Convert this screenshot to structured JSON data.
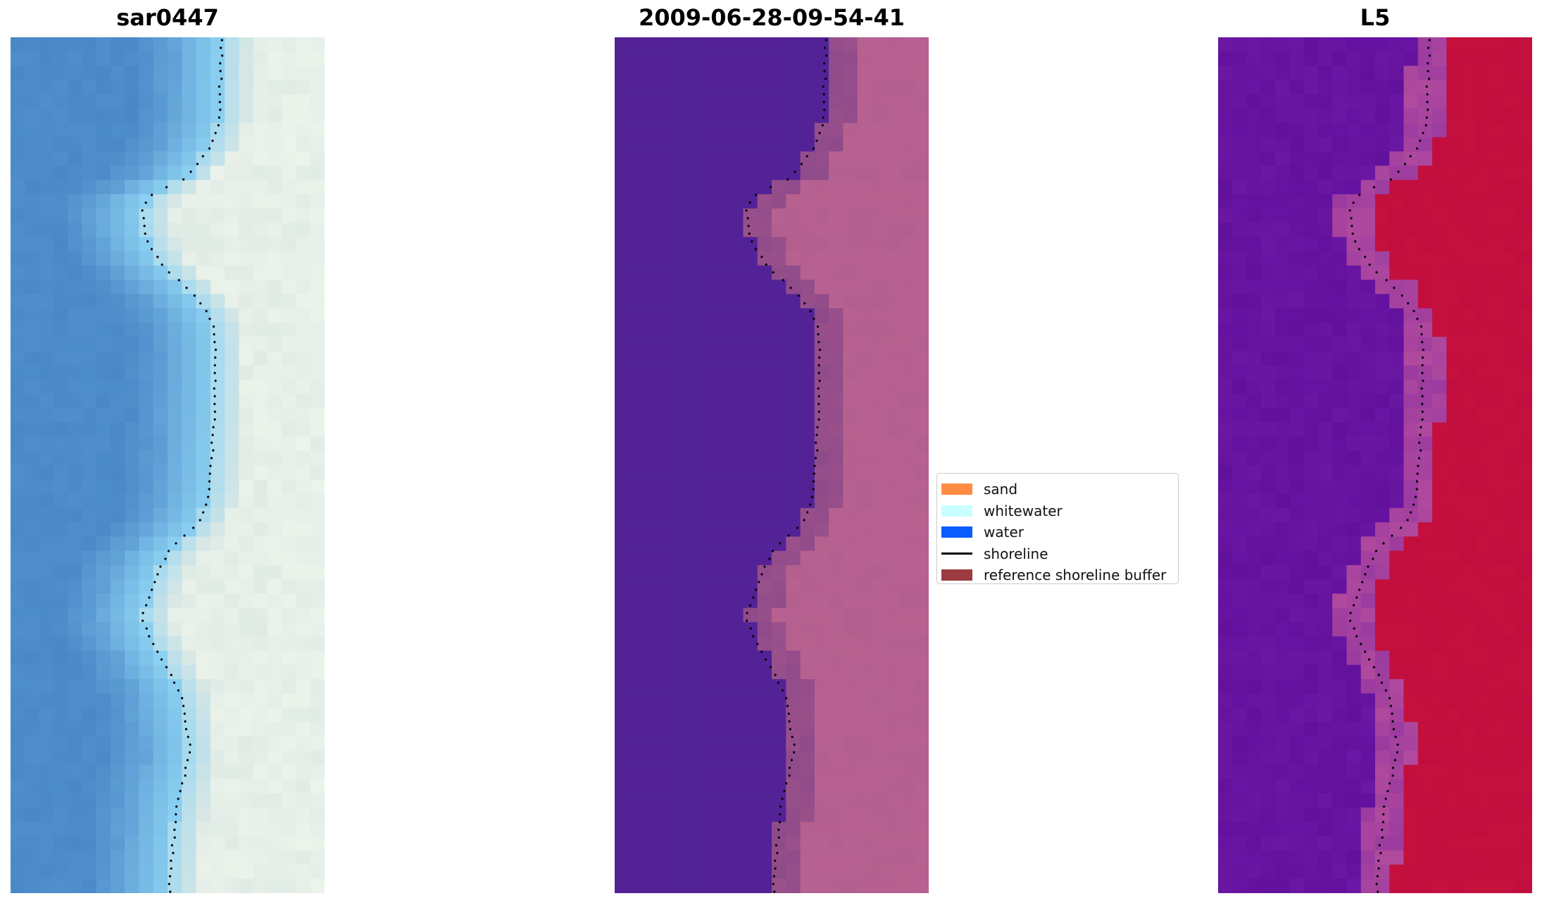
{
  "panels": [
    {
      "title": "sar0447",
      "kind": "rgb"
    },
    {
      "title": "2009-06-28-09-54-41",
      "kind": "classified"
    },
    {
      "title": "L5",
      "kind": "index"
    }
  ],
  "legend": {
    "items": [
      {
        "label": "sand",
        "color": "#ff8c42",
        "type": "patch"
      },
      {
        "label": "whitewater",
        "color": "#c8ffff",
        "type": "patch"
      },
      {
        "label": "water",
        "color": "#0a5cff",
        "type": "patch"
      },
      {
        "label": "shoreline",
        "color": "#000000",
        "type": "line"
      },
      {
        "label": "reference shoreline buffer",
        "color": "#9b3b3f",
        "type": "patch"
      }
    ]
  },
  "colors": {
    "rgb_water": "#4a88c8",
    "rgb_whitewater": "#8fd4f4",
    "rgb_sand": "#dce8e4",
    "class_water": "#532297",
    "class_buffer": "#8e4a8a",
    "class_sand": "#b4608e",
    "index_low": "#6a17a4",
    "index_buffer": "#b04a9e",
    "index_high": "#c20e3e"
  }
}
